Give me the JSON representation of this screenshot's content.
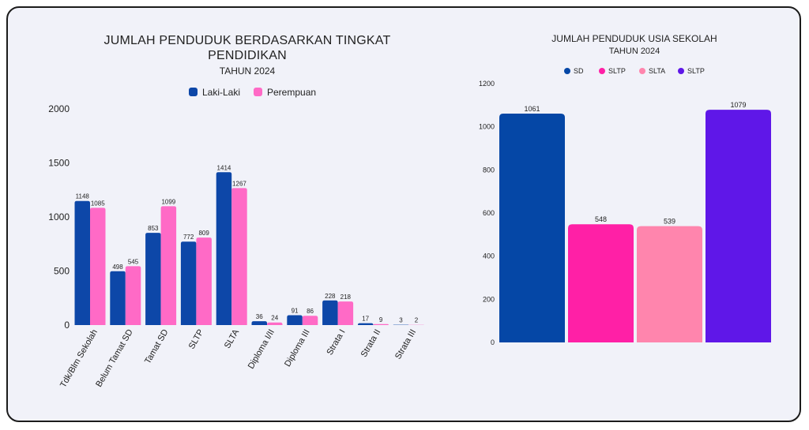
{
  "chart_data": [
    {
      "type": "bar",
      "title_line1": "JUMLAH PENDUDUK BERDASARKAN TINGKAT",
      "title_line2": "PENDIDIKAN",
      "subtitle": "TAHUN 2024",
      "categories": [
        "Tdk/Blm Sekolah",
        "Belum Tamat SD",
        "Tamat SD",
        "SLTP",
        "SLTA",
        "Diploma I/II",
        "Diploma III",
        "Strata I",
        "Strata II",
        "Strata III"
      ],
      "series": [
        {
          "name": "Laki-Laki",
          "color": "#0d47a8",
          "values": [
            1148,
            498,
            853,
            772,
            1414,
            36,
            91,
            228,
            17,
            3
          ]
        },
        {
          "name": "Perempuan",
          "color": "#ff6ac6",
          "values": [
            1085,
            545,
            1099,
            809,
            1267,
            24,
            86,
            218,
            9,
            2
          ]
        }
      ],
      "ylim": [
        0,
        2000
      ],
      "yticks": [
        "0",
        "500",
        "1000",
        "1500",
        "2000"
      ],
      "legend": "top",
      "grid": false
    },
    {
      "type": "bar",
      "title": "JUMLAH PENDUDUK USIA SEKOLAH",
      "subtitle": "TAHUN 2024",
      "categories": [
        "SD",
        "SLTP",
        "SLTA",
        "SLTP"
      ],
      "values": [
        1061,
        548,
        539,
        1079
      ],
      "colors": [
        "#0547a6",
        "#ff20a6",
        "#ff85ad",
        "#5f17e8"
      ],
      "ylim": [
        0,
        1200
      ],
      "yticks": [
        "0",
        "200",
        "400",
        "600",
        "800",
        "1000",
        "1200"
      ],
      "legend": "top",
      "grid": false
    }
  ]
}
